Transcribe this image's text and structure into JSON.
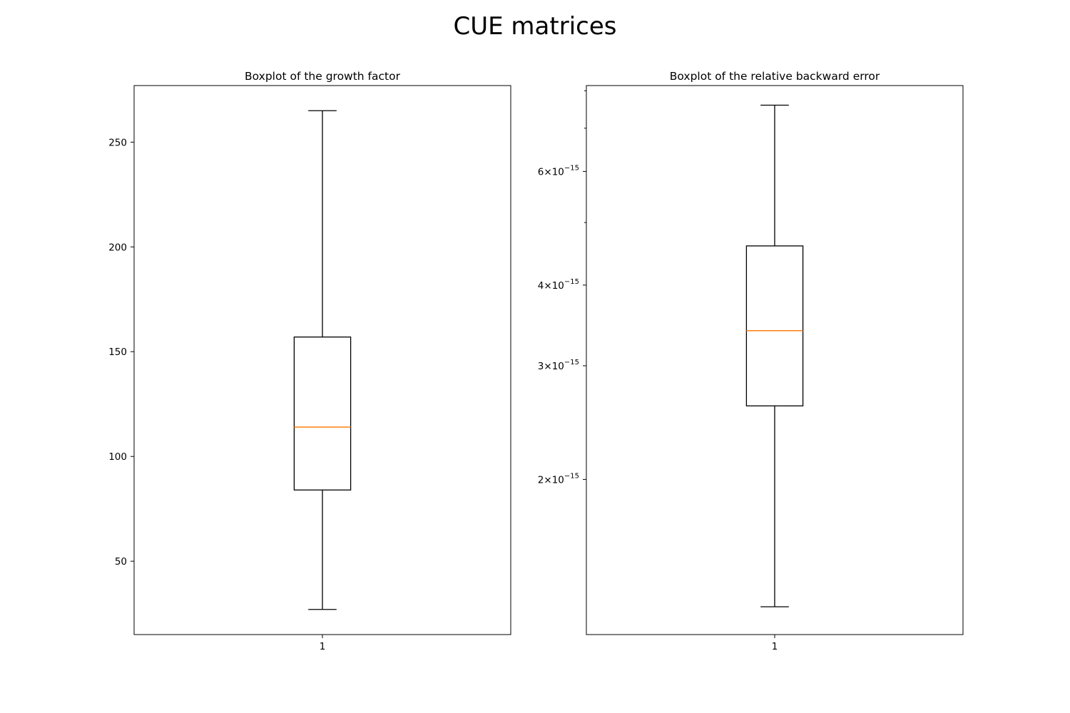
{
  "figure": {
    "suptitle": "CUE matrices"
  },
  "chart_data": [
    {
      "type": "boxplot",
      "title": "Boxplot of the growth factor",
      "xlabel": "",
      "ylabel": "",
      "yscale": "linear",
      "ylim": [
        15,
        277
      ],
      "yticks": [
        50,
        100,
        150,
        200,
        250
      ],
      "ytick_labels": [
        "50",
        "100",
        "150",
        "200",
        "250"
      ],
      "categories": [
        "1"
      ],
      "boxes": [
        {
          "whisker_low": 27,
          "q1": 84,
          "median": 114,
          "q3": 157,
          "whisker_high": 265
        }
      ],
      "grid": false,
      "box_color": "#000000",
      "median_color": "#ff7f0e"
    },
    {
      "type": "boxplot",
      "title": "Boxplot of the relative backward error",
      "xlabel": "",
      "ylabel": "",
      "yscale": "log",
      "ylim": [
        1.15e-15,
        8.15e-15
      ],
      "yticks": [
        2e-15,
        3e-15,
        4e-15,
        6e-15
      ],
      "ytick_labels": [
        {
          "mantissa": "2",
          "base": "10",
          "exponent": "−15"
        },
        {
          "mantissa": "3",
          "base": "10",
          "exponent": "−15"
        },
        {
          "mantissa": "4",
          "base": "10",
          "exponent": "−15"
        },
        {
          "mantissa": "6",
          "base": "10",
          "exponent": "−15"
        }
      ],
      "minor_yticks": [
        5e-15,
        7e-15,
        8e-15
      ],
      "categories": [
        "1"
      ],
      "boxes": [
        {
          "whisker_low": 1.27e-15,
          "q1": 2.6e-15,
          "median": 3.4e-15,
          "q3": 4.6e-15,
          "whisker_high": 7.6e-15
        }
      ],
      "grid": false,
      "box_color": "#000000",
      "median_color": "#ff7f0e"
    }
  ]
}
